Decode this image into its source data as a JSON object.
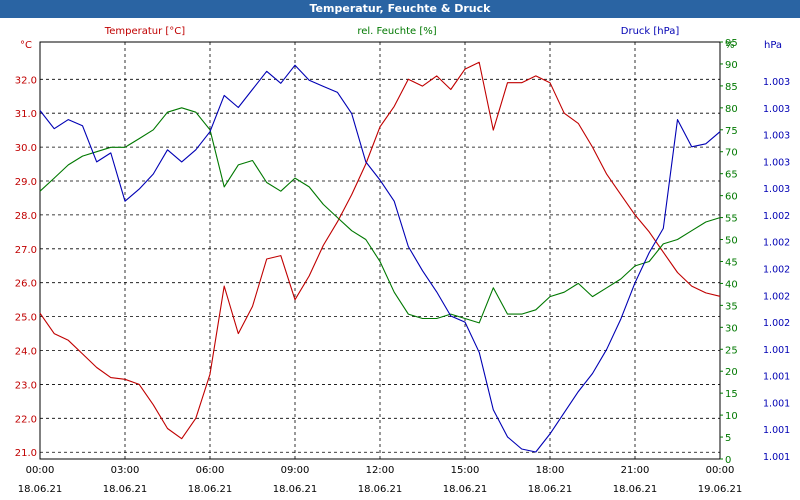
{
  "chart_data": {
    "type": "line",
    "title": "Temperatur, Feuchte & Druck",
    "colors": {
      "temperature": "#c00000",
      "humidity": "#007800",
      "pressure": "#0000b4",
      "titlebar": "#2a64a3"
    },
    "grid": true,
    "x_ticks": [
      {
        "time": "00:00",
        "date": "18.06.21"
      },
      {
        "time": "03:00",
        "date": "18.06.21"
      },
      {
        "time": "06:00",
        "date": "18.06.21"
      },
      {
        "time": "09:00",
        "date": "18.06.21"
      },
      {
        "time": "12:00",
        "date": "18.06.21"
      },
      {
        "time": "15:00",
        "date": "18.06.21"
      },
      {
        "time": "18:00",
        "date": "18.06.21"
      },
      {
        "time": "21:00",
        "date": "18.06.21"
      },
      {
        "time": "00:00",
        "date": "19.06.21"
      }
    ],
    "x_range_hours": [
      0,
      24
    ],
    "axes": {
      "temperature": {
        "label": "Temperatur [°C]",
        "unit": "°C",
        "range": [
          20.8,
          33.1
        ],
        "ticks": [
          "21.0",
          "22.0",
          "23.0",
          "24.0",
          "25.0",
          "26.0",
          "27.0",
          "28.0",
          "29.0",
          "30.0",
          "31.0",
          "32.0"
        ]
      },
      "humidity": {
        "label": "rel. Feuchte [%]",
        "unit": "%",
        "range": [
          0,
          95
        ],
        "ticks": [
          "0",
          "5",
          "10",
          "15",
          "20",
          "25",
          "30",
          "35",
          "40",
          "45",
          "50",
          "55",
          "60",
          "65",
          "70",
          "75",
          "80",
          "85",
          "90",
          "95"
        ]
      },
      "pressure": {
        "label": "Druck [hPa]",
        "unit": "hPa",
        "ticks": [
          "1.001",
          "1.001",
          "1.001",
          "1.001",
          "1.001",
          "1.002",
          "1.002",
          "1.002",
          "1.002",
          "1.002",
          "1.003",
          "1.003",
          "1.003",
          "1.003",
          "1.003"
        ]
      }
    },
    "series": [
      {
        "name": "Temperatur [°C]",
        "axis": "temperature",
        "x": [
          0,
          0.5,
          1,
          1.5,
          2,
          2.5,
          3,
          3.5,
          4,
          4.5,
          5,
          5.5,
          6,
          6.5,
          7,
          7.5,
          8,
          8.5,
          9,
          9.5,
          10,
          10.5,
          11,
          11.5,
          12,
          12.5,
          13,
          13.5,
          14,
          14.5,
          15,
          15.5,
          16,
          16.5,
          17,
          17.5,
          18,
          18.5,
          19,
          19.5,
          20,
          20.5,
          21,
          21.5,
          22,
          22.5,
          23,
          23.5,
          24
        ],
        "y": [
          25.1,
          24.5,
          24.3,
          23.9,
          23.5,
          23.2,
          23.15,
          23.0,
          22.4,
          21.7,
          21.4,
          22.0,
          23.3,
          25.9,
          24.5,
          25.3,
          26.7,
          26.8,
          25.5,
          26.2,
          27.1,
          27.8,
          28.6,
          29.5,
          30.6,
          31.2,
          32.0,
          31.8,
          32.1,
          31.7,
          32.3,
          32.5,
          30.5,
          31.9,
          31.9,
          32.1,
          31.9,
          31.0,
          30.7,
          30.0,
          29.2,
          28.6,
          28.0,
          27.5,
          26.9,
          26.3,
          25.9,
          25.7,
          25.6
        ]
      },
      {
        "name": "rel. Feuchte [%]",
        "axis": "humidity",
        "x": [
          0,
          0.5,
          1,
          1.5,
          2,
          2.5,
          3,
          3.5,
          4,
          4.5,
          5,
          5.5,
          6,
          6.5,
          7,
          7.5,
          8,
          8.5,
          9,
          9.5,
          10,
          10.5,
          11,
          11.5,
          12,
          12.5,
          13,
          13.5,
          14,
          14.5,
          15,
          15.5,
          16,
          16.5,
          17,
          17.5,
          18,
          18.5,
          19,
          19.5,
          20,
          20.5,
          21,
          21.5,
          22,
          22.5,
          23,
          23.5,
          24
        ],
        "y": [
          61,
          64,
          67,
          69,
          70,
          71,
          71,
          73,
          75,
          79,
          80,
          79,
          75,
          62,
          67,
          68,
          63,
          61,
          64,
          62,
          58,
          55,
          52,
          50,
          45,
          38,
          33,
          32,
          32,
          33,
          32,
          31,
          39,
          33,
          33,
          34,
          37,
          38,
          40,
          37,
          39,
          41,
          44,
          45,
          49,
          50,
          52,
          54,
          55
        ]
      },
      {
        "name": "Druck [hPa]",
        "axis": "pressure",
        "x": [
          0,
          0.5,
          1,
          1.5,
          2,
          2.5,
          3,
          3.5,
          4,
          4.5,
          5,
          5.5,
          6,
          6.5,
          7,
          7.5,
          8,
          8.5,
          9,
          9.5,
          10,
          10.5,
          11,
          11.5,
          12,
          12.5,
          13,
          13.5,
          14,
          14.5,
          15,
          15.5,
          16,
          16.5,
          17,
          17.5,
          18,
          18.5,
          19,
          19.5,
          20,
          20.5,
          21,
          21.5,
          22,
          22.5,
          23,
          23.5,
          24
        ],
        "y": [
          1.00305,
          1.00299,
          1.00302,
          1.003,
          1.00288,
          1.00291,
          1.00275,
          1.00279,
          1.00284,
          1.00292,
          1.00288,
          1.00292,
          1.00298,
          1.0031,
          1.00306,
          1.00312,
          1.00318,
          1.00314,
          1.0032,
          1.00315,
          1.00313,
          1.00311,
          1.00304,
          1.00288,
          1.00282,
          1.00275,
          1.0026,
          1.00252,
          1.00245,
          1.00237,
          1.00235,
          1.00225,
          1.00206,
          1.00197,
          1.00193,
          1.00192,
          1.00198,
          1.00205,
          1.00212,
          1.00218,
          1.00226,
          1.00236,
          1.00248,
          1.00258,
          1.00266,
          1.00302,
          1.00293,
          1.00294,
          1.00298
        ]
      }
    ]
  }
}
